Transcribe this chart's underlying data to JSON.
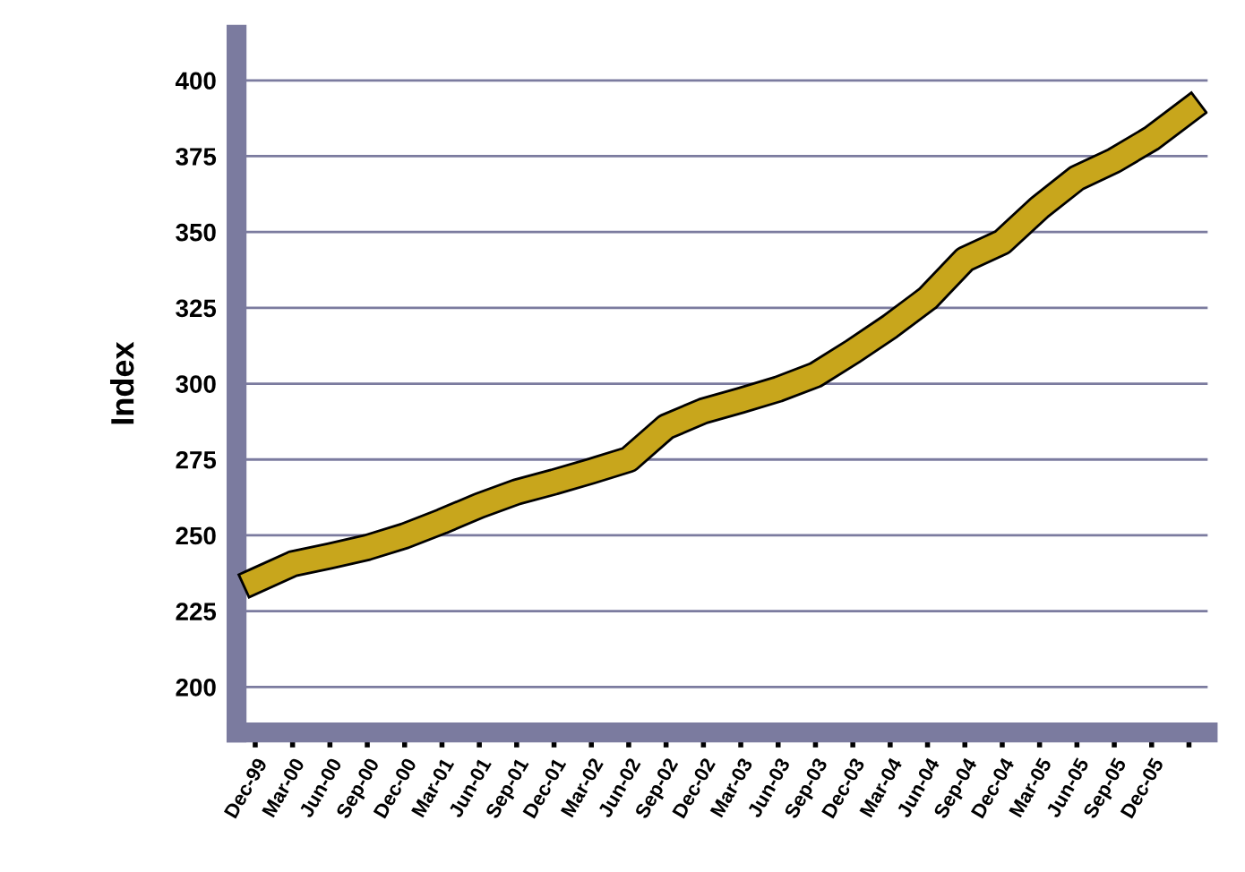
{
  "chart_data": {
    "type": "line",
    "ylabel": "Index",
    "categories": [
      "Dec-99",
      "Mar-00",
      "Jun-00",
      "Sep-00",
      "Dec-00",
      "Mar-01",
      "Jun-01",
      "Sep-01",
      "Dec-01",
      "Mar-02",
      "Jun-02",
      "Sep-02",
      "Dec-02",
      "Mar-03",
      "Jun-03",
      "Sep-03",
      "Dec-03",
      "Mar-04",
      "Jun-04",
      "Sep-04",
      "Dec-04",
      "Mar-05",
      "Jun-05",
      "Sep-05",
      "Dec-05",
      null
    ],
    "series": [
      {
        "color": "#c8a61c",
        "values": [
          235,
          240.6,
          243.2,
          246,
          249.8,
          254.6,
          259.8,
          264.3,
          267.6,
          271.2,
          275,
          285.8,
          291,
          294.5,
          298.2,
          302.9,
          310.6,
          318.9,
          328.1,
          341,
          346.7,
          358.1,
          367.8,
          373.6,
          380.9,
          390.2
        ]
      }
    ],
    "ylim": [
      185,
      415
    ],
    "yticks": [
      200,
      225,
      250,
      275,
      300,
      325,
      350,
      375,
      400
    ],
    "grid": "y",
    "marker": "none",
    "line_style": "solid"
  }
}
